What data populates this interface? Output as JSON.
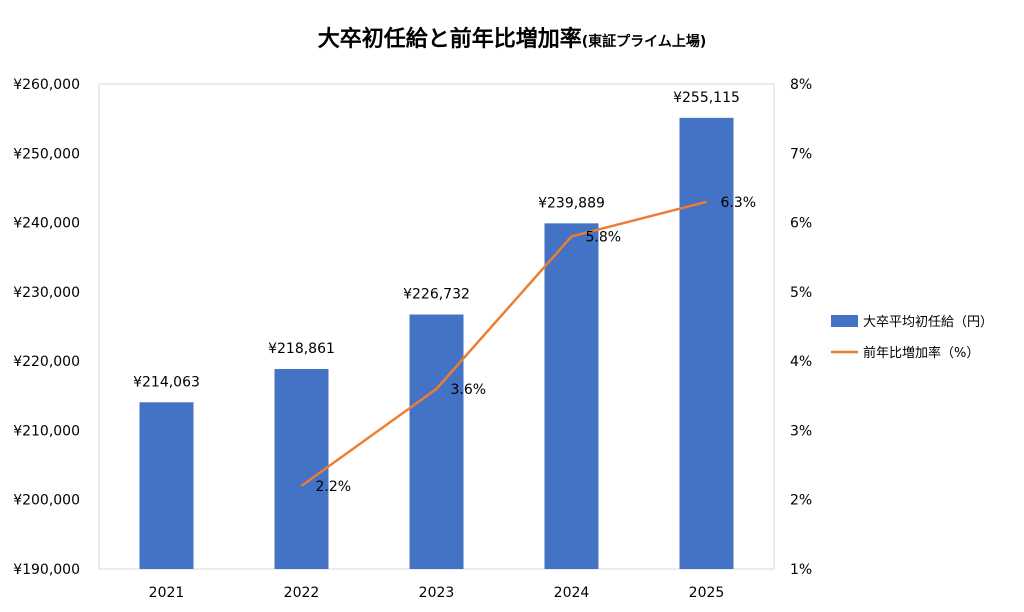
{
  "colors": {
    "bar": "#4472C4",
    "line": "#ED7D31",
    "axis": "#bfbfbf",
    "plot_border": "#d9d9d9",
    "text": "#000000"
  },
  "chart_data": {
    "type": "bar",
    "title": "大卒初任給と前年比増加率",
    "subtitle": "(東証プライム上場)",
    "categories": [
      "2021",
      "2022",
      "2023",
      "2024",
      "2025"
    ],
    "series": [
      {
        "name": "大卒平均初任給（円）",
        "type": "bar",
        "axis": "left",
        "values": [
          214063,
          218861,
          226732,
          239889,
          255115
        ],
        "labels": [
          "¥214,063",
          "¥218,861",
          "¥226,732",
          "¥239,889",
          "¥255,115"
        ]
      },
      {
        "name": "前年比増加率（%）",
        "type": "line",
        "axis": "right",
        "values": [
          null,
          2.2,
          3.6,
          5.8,
          6.3
        ],
        "labels": [
          "",
          "2.2%",
          "3.6%",
          "5.8%",
          "6.3%"
        ]
      }
    ],
    "y_left": {
      "ylim": [
        190000,
        260000
      ],
      "ticks": [
        190000,
        200000,
        210000,
        220000,
        230000,
        240000,
        250000,
        260000
      ],
      "tick_labels": [
        "¥190,000",
        "¥200,000",
        "¥210,000",
        "¥220,000",
        "¥230,000",
        "¥240,000",
        "¥250,000",
        "¥260,000"
      ]
    },
    "y_right": {
      "ylim": [
        1,
        8
      ],
      "ticks": [
        1,
        2,
        3,
        4,
        5,
        6,
        7,
        8
      ],
      "tick_labels": [
        "1%",
        "2%",
        "3%",
        "4%",
        "5%",
        "6%",
        "7%",
        "8%"
      ]
    },
    "grid": false,
    "legend_position": "right"
  }
}
